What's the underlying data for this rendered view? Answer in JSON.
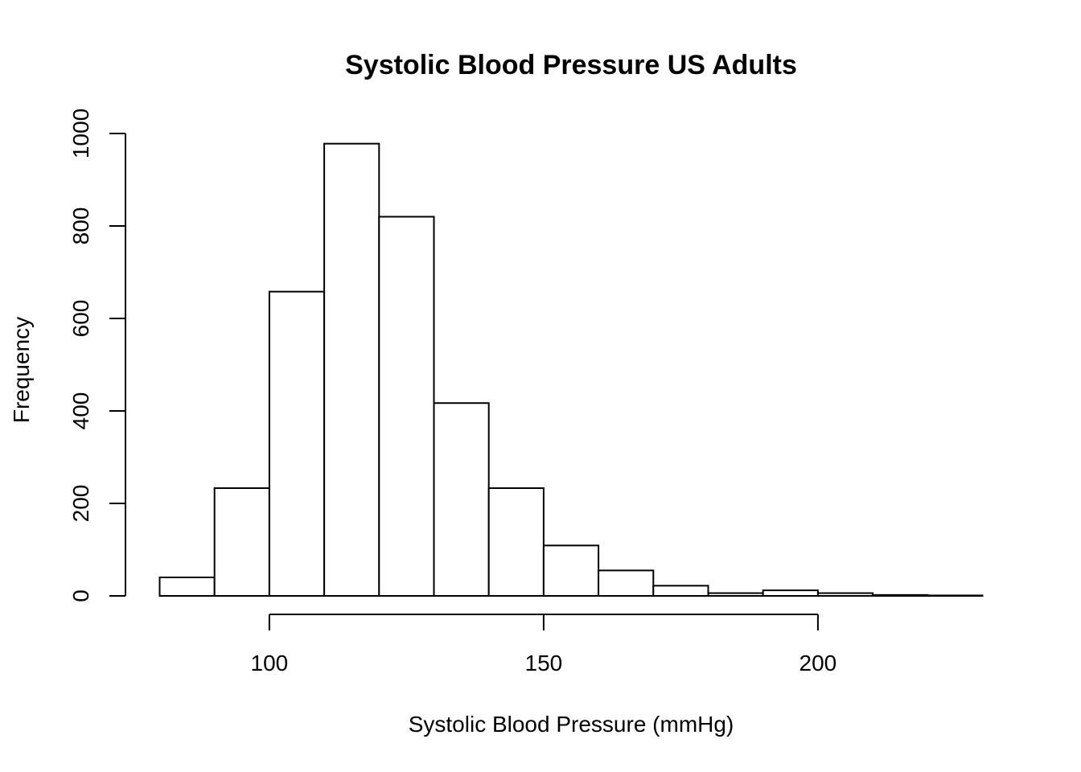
{
  "chart_data": {
    "type": "bar",
    "title": "Systolic Blood Pressure US Adults",
    "xlabel": "Systolic Blood Pressure (mmHg)",
    "ylabel": "Frequency",
    "bins": [
      {
        "x0": 80,
        "x1": 90,
        "count": 40
      },
      {
        "x0": 90,
        "x1": 100,
        "count": 233
      },
      {
        "x0": 100,
        "x1": 110,
        "count": 658
      },
      {
        "x0": 110,
        "x1": 120,
        "count": 978
      },
      {
        "x0": 120,
        "x1": 130,
        "count": 820
      },
      {
        "x0": 130,
        "x1": 140,
        "count": 417
      },
      {
        "x0": 140,
        "x1": 150,
        "count": 233
      },
      {
        "x0": 150,
        "x1": 160,
        "count": 109
      },
      {
        "x0": 160,
        "x1": 170,
        "count": 55
      },
      {
        "x0": 170,
        "x1": 180,
        "count": 22
      },
      {
        "x0": 180,
        "x1": 190,
        "count": 6
      },
      {
        "x0": 190,
        "x1": 200,
        "count": 12
      },
      {
        "x0": 200,
        "x1": 210,
        "count": 6
      },
      {
        "x0": 210,
        "x1": 220,
        "count": 2
      },
      {
        "x0": 220,
        "x1": 230,
        "count": 1
      }
    ],
    "x_ticks": [
      100,
      150,
      200
    ],
    "x_tick_labels": [
      "100",
      "150",
      "200"
    ],
    "y_ticks": [
      0,
      200,
      400,
      600,
      800,
      1000
    ],
    "y_tick_labels": [
      "0",
      "200",
      "400",
      "600",
      "800",
      "1000"
    ],
    "xlim": [
      80,
      230
    ],
    "ylim": [
      0,
      1000
    ],
    "grid": false,
    "bar_fill": "#ffffff",
    "bar_stroke": "#000000"
  }
}
